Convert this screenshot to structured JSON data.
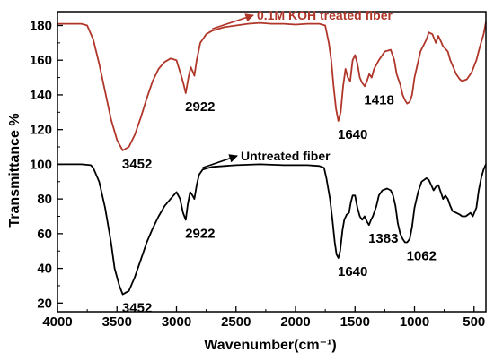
{
  "chart_data": {
    "type": "line",
    "xlabel": "Wavenumber(cm⁻¹)",
    "ylabel": "Transmittance %",
    "xlim": [
      4000,
      400
    ],
    "ylim": [
      15,
      188
    ],
    "x_reversed": true,
    "grid": false,
    "x_ticks": [
      4000,
      3500,
      3000,
      2500,
      2000,
      1500,
      1000,
      500
    ],
    "y_ticks": [
      20,
      40,
      60,
      80,
      100,
      120,
      140,
      160,
      180
    ],
    "series": [
      {
        "name": "0.1M KOH treated fiber",
        "color": "#b0362a",
        "points": [
          [
            4000,
            181
          ],
          [
            3800,
            181
          ],
          [
            3750,
            180
          ],
          [
            3700,
            172
          ],
          [
            3650,
            158
          ],
          [
            3600,
            142
          ],
          [
            3550,
            126
          ],
          [
            3500,
            114
          ],
          [
            3452,
            108
          ],
          [
            3400,
            110
          ],
          [
            3350,
            117
          ],
          [
            3300,
            127
          ],
          [
            3250,
            138
          ],
          [
            3200,
            148
          ],
          [
            3150,
            155
          ],
          [
            3100,
            159
          ],
          [
            3050,
            161
          ],
          [
            3000,
            160
          ],
          [
            2960,
            151
          ],
          [
            2940,
            146
          ],
          [
            2922,
            141
          ],
          [
            2900,
            150
          ],
          [
            2880,
            156
          ],
          [
            2860,
            153
          ],
          [
            2850,
            151
          ],
          [
            2830,
            160
          ],
          [
            2800,
            170
          ],
          [
            2750,
            175
          ],
          [
            2700,
            177
          ],
          [
            2600,
            179
          ],
          [
            2500,
            180
          ],
          [
            2400,
            181
          ],
          [
            2300,
            181.5
          ],
          [
            2200,
            181
          ],
          [
            2100,
            181
          ],
          [
            2000,
            180.5
          ],
          [
            1900,
            181
          ],
          [
            1800,
            181
          ],
          [
            1750,
            180
          ],
          [
            1720,
            170
          ],
          [
            1700,
            160
          ],
          [
            1680,
            145
          ],
          [
            1660,
            132
          ],
          [
            1640,
            125
          ],
          [
            1620,
            130
          ],
          [
            1600,
            145
          ],
          [
            1580,
            155
          ],
          [
            1560,
            150
          ],
          [
            1540,
            148
          ],
          [
            1520,
            160
          ],
          [
            1500,
            163
          ],
          [
            1480,
            158
          ],
          [
            1460,
            150
          ],
          [
            1440,
            147
          ],
          [
            1418,
            145
          ],
          [
            1400,
            148
          ],
          [
            1380,
            152
          ],
          [
            1360,
            150
          ],
          [
            1340,
            155
          ],
          [
            1300,
            160
          ],
          [
            1250,
            165
          ],
          [
            1200,
            166
          ],
          [
            1170,
            160
          ],
          [
            1150,
            152
          ],
          [
            1120,
            146
          ],
          [
            1100,
            140
          ],
          [
            1080,
            137
          ],
          [
            1062,
            135
          ],
          [
            1040,
            136
          ],
          [
            1020,
            140
          ],
          [
            1000,
            150
          ],
          [
            950,
            165
          ],
          [
            900,
            172
          ],
          [
            880,
            176
          ],
          [
            850,
            175
          ],
          [
            820,
            170
          ],
          [
            800,
            174
          ],
          [
            780,
            171
          ],
          [
            760,
            168
          ],
          [
            720,
            165
          ],
          [
            700,
            160
          ],
          [
            650,
            152
          ],
          [
            620,
            149
          ],
          [
            600,
            148
          ],
          [
            560,
            149
          ],
          [
            520,
            153
          ],
          [
            480,
            160
          ],
          [
            450,
            168
          ],
          [
            420,
            175
          ],
          [
            400,
            182
          ]
        ]
      },
      {
        "name": "Untreated fiber",
        "color": "#000000",
        "points": [
          [
            4000,
            100
          ],
          [
            3800,
            100
          ],
          [
            3720,
            99.5
          ],
          [
            3700,
            98
          ],
          [
            3650,
            90
          ],
          [
            3600,
            75
          ],
          [
            3550,
            55
          ],
          [
            3520,
            40
          ],
          [
            3480,
            30
          ],
          [
            3452,
            25
          ],
          [
            3400,
            27
          ],
          [
            3350,
            35
          ],
          [
            3300,
            45
          ],
          [
            3250,
            55
          ],
          [
            3200,
            63
          ],
          [
            3150,
            70
          ],
          [
            3100,
            76
          ],
          [
            3050,
            80
          ],
          [
            3000,
            84
          ],
          [
            2970,
            80
          ],
          [
            2945,
            72
          ],
          [
            2922,
            68
          ],
          [
            2905,
            77
          ],
          [
            2885,
            84
          ],
          [
            2865,
            82
          ],
          [
            2850,
            80
          ],
          [
            2830,
            88
          ],
          [
            2810,
            94
          ],
          [
            2780,
            97
          ],
          [
            2700,
            98.5
          ],
          [
            2500,
            99.5
          ],
          [
            2300,
            100
          ],
          [
            2100,
            99.5
          ],
          [
            1900,
            99.5
          ],
          [
            1800,
            99
          ],
          [
            1760,
            98
          ],
          [
            1740,
            92
          ],
          [
            1710,
            80
          ],
          [
            1690,
            68
          ],
          [
            1670,
            55
          ],
          [
            1655,
            48
          ],
          [
            1640,
            46
          ],
          [
            1625,
            50
          ],
          [
            1605,
            62
          ],
          [
            1590,
            68
          ],
          [
            1570,
            71
          ],
          [
            1550,
            72
          ],
          [
            1535,
            78
          ],
          [
            1520,
            82
          ],
          [
            1500,
            82
          ],
          [
            1480,
            75
          ],
          [
            1460,
            70
          ],
          [
            1440,
            68
          ],
          [
            1420,
            70
          ],
          [
            1400,
            67
          ],
          [
            1383,
            65
          ],
          [
            1365,
            68
          ],
          [
            1350,
            70
          ],
          [
            1320,
            76
          ],
          [
            1300,
            82
          ],
          [
            1270,
            85
          ],
          [
            1230,
            86
          ],
          [
            1200,
            85
          ],
          [
            1180,
            82
          ],
          [
            1160,
            76
          ],
          [
            1140,
            66
          ],
          [
            1120,
            60
          ],
          [
            1100,
            57
          ],
          [
            1080,
            55
          ],
          [
            1062,
            55
          ],
          [
            1040,
            57
          ],
          [
            1020,
            64
          ],
          [
            1000,
            75
          ],
          [
            970,
            84
          ],
          [
            940,
            90
          ],
          [
            900,
            92
          ],
          [
            880,
            91
          ],
          [
            860,
            88
          ],
          [
            840,
            85
          ],
          [
            820,
            87
          ],
          [
            800,
            88
          ],
          [
            780,
            84
          ],
          [
            760,
            80
          ],
          [
            740,
            82
          ],
          [
            720,
            80
          ],
          [
            700,
            76
          ],
          [
            680,
            73
          ],
          [
            650,
            72
          ],
          [
            620,
            71
          ],
          [
            600,
            70
          ],
          [
            570,
            70
          ],
          [
            550,
            71
          ],
          [
            530,
            72
          ],
          [
            510,
            70
          ],
          [
            480,
            75
          ],
          [
            460,
            85
          ],
          [
            440,
            92
          ],
          [
            420,
            97
          ],
          [
            400,
            100
          ]
        ]
      }
    ],
    "legend": [
      {
        "label": "0.1M KOH treated fiber",
        "color": "#b0362a",
        "arrow_to": [
          2700,
          177
        ]
      },
      {
        "label": "Untreated fiber",
        "color": "#000000",
        "arrow_to": [
          2780,
          97
        ]
      }
    ],
    "annotations": [
      {
        "text": "3452",
        "x": 3452,
        "y": 108
      },
      {
        "text": "2922",
        "x": 2922,
        "y": 141
      },
      {
        "text": "1640",
        "x": 1640,
        "y": 125
      },
      {
        "text": "1418",
        "x": 1418,
        "y": 145
      },
      {
        "text": "3452",
        "x": 3452,
        "y": 25
      },
      {
        "text": "2922",
        "x": 2922,
        "y": 68
      },
      {
        "text": "1640",
        "x": 1640,
        "y": 46
      },
      {
        "text": "1383",
        "x": 1383,
        "y": 65
      },
      {
        "text": "1062",
        "x": 1062,
        "y": 55
      }
    ]
  }
}
